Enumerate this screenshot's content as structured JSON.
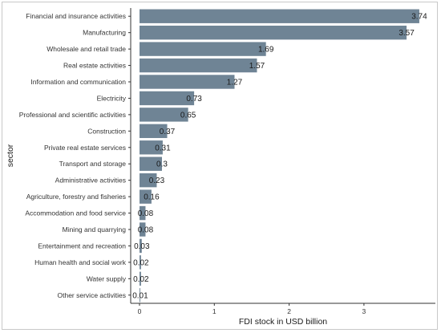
{
  "chart_data": {
    "type": "bar",
    "orientation": "horizontal",
    "categories": [
      "Financial and insurance activities",
      "Manufacturing",
      "Wholesale and retail trade",
      "Real estate activities",
      "Information and communication",
      "Electricity",
      "Professional and scientific activities",
      "Construction",
      "Private real estate services",
      "Transport and storage",
      "Administrative  activities",
      "Agriculture, forestry and fisheries",
      "Accommodation and food service",
      "Mining and quarrying",
      "Entertainment and recreation",
      "Human health and social work",
      "Water supply",
      "Other service activities"
    ],
    "values": [
      3.74,
      3.57,
      1.69,
      1.57,
      1.27,
      0.73,
      0.65,
      0.37,
      0.31,
      0.3,
      0.23,
      0.16,
      0.08,
      0.08,
      0.03,
      0.02,
      0.02,
      0.01
    ],
    "value_labels": [
      "3.74",
      "3.57",
      "1.69",
      "1.57",
      "1.27",
      "0.73",
      "0.65",
      "0.37",
      "0.31",
      "0.3",
      "0.23",
      "0.16",
      "0.08",
      "0.08",
      "0.03",
      "0.02",
      "0.02",
      "0.01"
    ],
    "xlabel": "FDI stock in USD billion",
    "ylabel": "sector",
    "xlim": [
      0,
      3.96
    ],
    "xticks": [
      0,
      1,
      2,
      3
    ],
    "grid": false,
    "bar_color": "#6f8495"
  }
}
